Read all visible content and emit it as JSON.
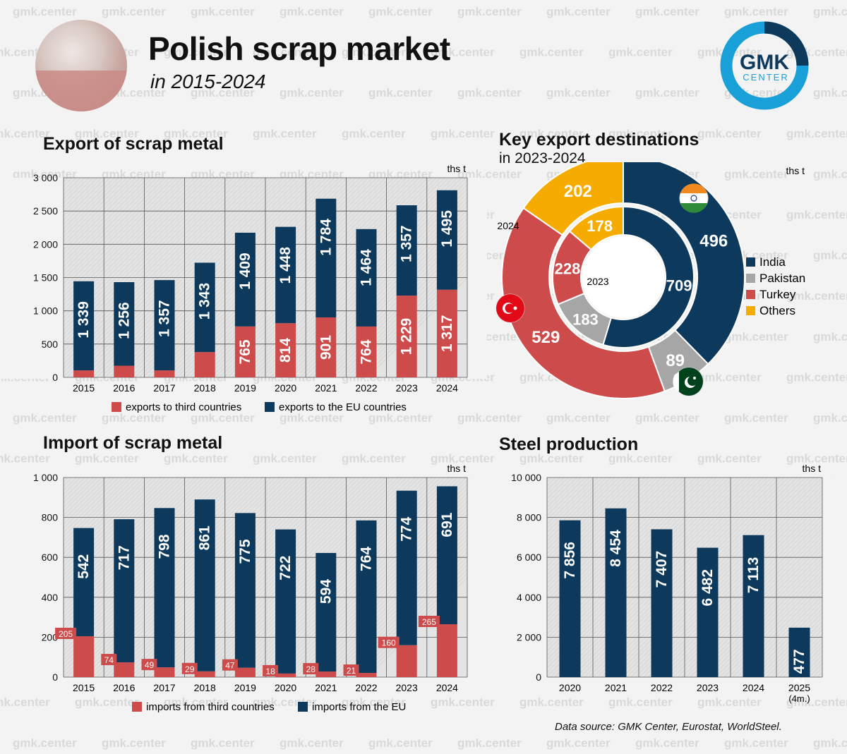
{
  "header": {
    "title": "Polish scrap market",
    "subtitle": "in 2015-2024",
    "logo_line1": "GMK",
    "logo_line2": "CENTER",
    "watermark": "gmk.center"
  },
  "sections": {
    "export_title": "Export of scrap metal",
    "destinations_title": "Key export destinations",
    "destinations_subtitle": "in 2023-2024",
    "import_title": "Import of scrap metal",
    "steel_title": "Steel production"
  },
  "source_note": "Data source: GMK Center, Eurostat, WorldSteel.",
  "colors": {
    "navy": "#0d3a5c",
    "red": "#cd4b4b",
    "grey": "#a6a6a6",
    "yellow": "#f5ab00",
    "logo_blue": "#1aa0d8"
  },
  "chart_data": [
    {
      "id": "export",
      "type": "bar",
      "stacked": true,
      "unit": "ths t",
      "categories": [
        "2015",
        "2016",
        "2017",
        "2018",
        "2019",
        "2020",
        "2021",
        "2022",
        "2023",
        "2024"
      ],
      "series": [
        {
          "name": "exports to third countries",
          "values": [
            105,
            175,
            105,
            380,
            765,
            814,
            901,
            764,
            1229,
            1317
          ],
          "labels": [
            "",
            "",
            "",
            "",
            "765",
            "814",
            "901",
            "764",
            "1 229",
            "1 317"
          ]
        },
        {
          "name": "exports to the EU countries",
          "values": [
            1339,
            1256,
            1357,
            1343,
            1409,
            1448,
            1784,
            1464,
            1357,
            1495
          ],
          "labels": [
            "1 339",
            "1 256",
            "1 357",
            "1 343",
            "1 409",
            "1 448",
            "1 784",
            "1 464",
            "1 357",
            "1 495"
          ]
        }
      ],
      "ylim": [
        0,
        3000
      ],
      "yticks": [
        "0",
        "500",
        "1 000",
        "1 500",
        "2 000",
        "2 500",
        "3 000"
      ],
      "legend": "bottom"
    },
    {
      "id": "destinations",
      "type": "pie",
      "unit": "ths t",
      "rings": [
        {
          "name": "2024",
          "slices": [
            {
              "label": "India",
              "value": 496
            },
            {
              "label": "Pakistan",
              "value": 89
            },
            {
              "label": "Turkey",
              "value": 529
            },
            {
              "label": "Others",
              "value": 202
            }
          ]
        },
        {
          "name": "2023",
          "slices": [
            {
              "label": "India",
              "value": 709
            },
            {
              "label": "Pakistan",
              "value": 183
            },
            {
              "label": "Turkey",
              "value": 228
            },
            {
              "label": "Others",
              "value": 178
            }
          ]
        }
      ],
      "legend": [
        "India",
        "Pakistan",
        "Turkey",
        "Others"
      ]
    },
    {
      "id": "import",
      "type": "bar",
      "stacked": true,
      "unit": "ths t",
      "categories": [
        "2015",
        "2016",
        "2017",
        "2018",
        "2019",
        "2020",
        "2021",
        "2022",
        "2023",
        "2024"
      ],
      "series": [
        {
          "name": "imports from third countries",
          "values": [
            205,
            74,
            49,
            29,
            47,
            18,
            28,
            21,
            160,
            265
          ]
        },
        {
          "name": "imports from the EU",
          "values": [
            542,
            717,
            798,
            861,
            775,
            722,
            594,
            764,
            774,
            691
          ]
        }
      ],
      "ylim": [
        0,
        1000
      ],
      "yticks": [
        "0",
        "200",
        "400",
        "600",
        "800",
        "1 000"
      ],
      "legend": "bottom"
    },
    {
      "id": "steel",
      "type": "bar",
      "unit": "ths t",
      "categories": [
        "2020",
        "2021",
        "2022",
        "2023",
        "2024",
        "2025\n(4m.)"
      ],
      "values": [
        7856,
        8454,
        7407,
        6482,
        7113,
        2477
      ],
      "labels": [
        "7 856",
        "8 454",
        "7 407",
        "6 482",
        "7 113",
        "2 477"
      ],
      "ylim": [
        0,
        10000
      ],
      "yticks": [
        "0",
        "2 000",
        "4 000",
        "6 000",
        "8 000",
        "10 000"
      ]
    }
  ]
}
